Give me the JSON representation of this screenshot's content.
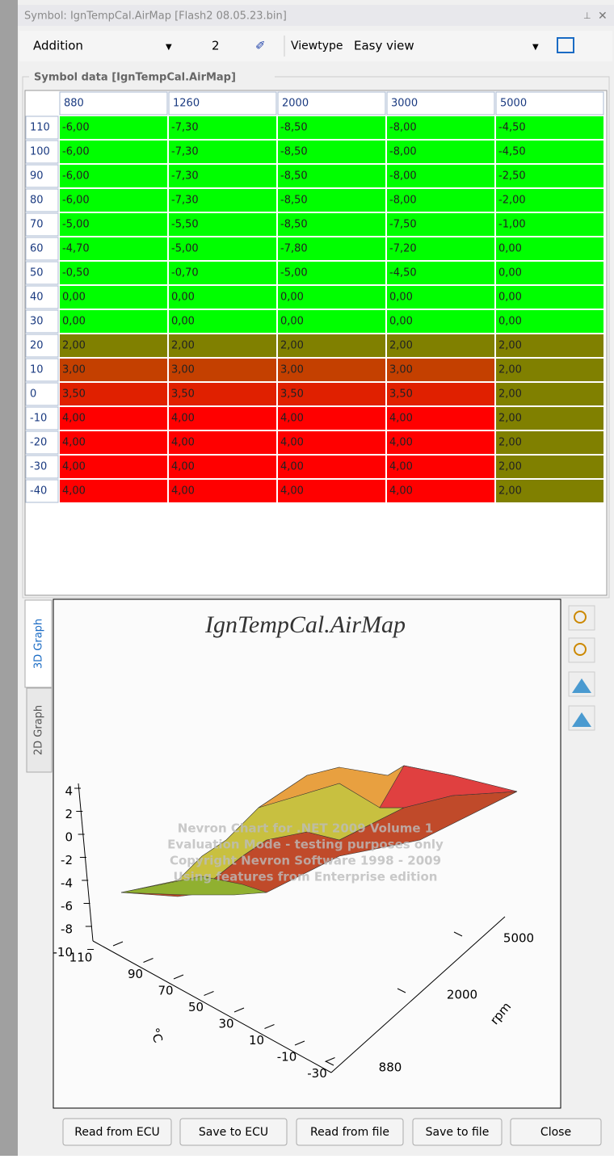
{
  "window": {
    "title": "Symbol: IgnTempCal.AirMap [Flash2 08.05.23.bin]"
  },
  "toolbar": {
    "mode": "Addition",
    "amount": "2",
    "viewtype_label": "Viewtype",
    "viewtype": "Easy view"
  },
  "table": {
    "title": "Symbol data [IgnTempCal.AirMap]",
    "columns": [
      "880",
      "1260",
      "2000",
      "3000",
      "5000"
    ],
    "rows": [
      {
        "label": "110",
        "cells": [
          "-6,00",
          "-7,30",
          "-8,50",
          "-8,00",
          "-4,50"
        ]
      },
      {
        "label": "100",
        "cells": [
          "-6,00",
          "-7,30",
          "-8,50",
          "-8,00",
          "-4,50"
        ]
      },
      {
        "label": "90",
        "cells": [
          "-6,00",
          "-7,30",
          "-8,50",
          "-8,00",
          "-2,50"
        ]
      },
      {
        "label": "80",
        "cells": [
          "-6,00",
          "-7,30",
          "-8,50",
          "-8,00",
          "-2,00"
        ]
      },
      {
        "label": "70",
        "cells": [
          "-5,00",
          "-5,50",
          "-8,50",
          "-7,50",
          "-1,00"
        ]
      },
      {
        "label": "60",
        "cells": [
          "-4,70",
          "-5,00",
          "-7,80",
          "-7,20",
          "0,00"
        ]
      },
      {
        "label": "50",
        "cells": [
          "-0,50",
          "-0,70",
          "-5,00",
          "-4,50",
          "0,00"
        ]
      },
      {
        "label": "40",
        "cells": [
          "0,00",
          "0,00",
          "0,00",
          "0,00",
          "0,00"
        ]
      },
      {
        "label": "30",
        "cells": [
          "0,00",
          "0,00",
          "0,00",
          "0,00",
          "0,00"
        ]
      },
      {
        "label": "20",
        "cells": [
          "2,00",
          "2,00",
          "2,00",
          "2,00",
          "2,00"
        ]
      },
      {
        "label": "10",
        "cells": [
          "3,00",
          "3,00",
          "3,00",
          "3,00",
          "2,00"
        ]
      },
      {
        "label": "0",
        "cells": [
          "3,50",
          "3,50",
          "3,50",
          "3,50",
          "2,00"
        ]
      },
      {
        "label": "-10",
        "cells": [
          "4,00",
          "4,00",
          "4,00",
          "4,00",
          "2,00"
        ]
      },
      {
        "label": "-20",
        "cells": [
          "4,00",
          "4,00",
          "4,00",
          "4,00",
          "2,00"
        ]
      },
      {
        "label": "-30",
        "cells": [
          "4,00",
          "4,00",
          "4,00",
          "4,00",
          "2,00"
        ]
      },
      {
        "label": "-40",
        "cells": [
          "4,00",
          "4,00",
          "4,00",
          "4,00",
          "2,00"
        ]
      }
    ]
  },
  "graph": {
    "tabs": [
      "3D Graph",
      "2D Graph"
    ],
    "title": "IgnTempCal.AirMap",
    "z_ticks": [
      "4",
      "2",
      "0",
      "-2",
      "-4",
      "-6",
      "-8",
      "-10"
    ],
    "temp_ticks": [
      "110",
      "90",
      "70",
      "50",
      "30",
      "10",
      "-10",
      "-30"
    ],
    "temp_label": "°C",
    "rpm_ticks": [
      "880",
      "2000",
      "5000"
    ],
    "rpm_label": "rpm",
    "watermark": [
      "Nevron Chart for .NET 2009 Volume 1",
      "Evaluation Mode - testing purposes only",
      "Copyright Nevron Software 1998 - 2009",
      "Using features from Enterprise edition"
    ]
  },
  "buttons": [
    "Read from ECU",
    "Save to ECU",
    "Read from file",
    "Save to file",
    "Close"
  ]
}
